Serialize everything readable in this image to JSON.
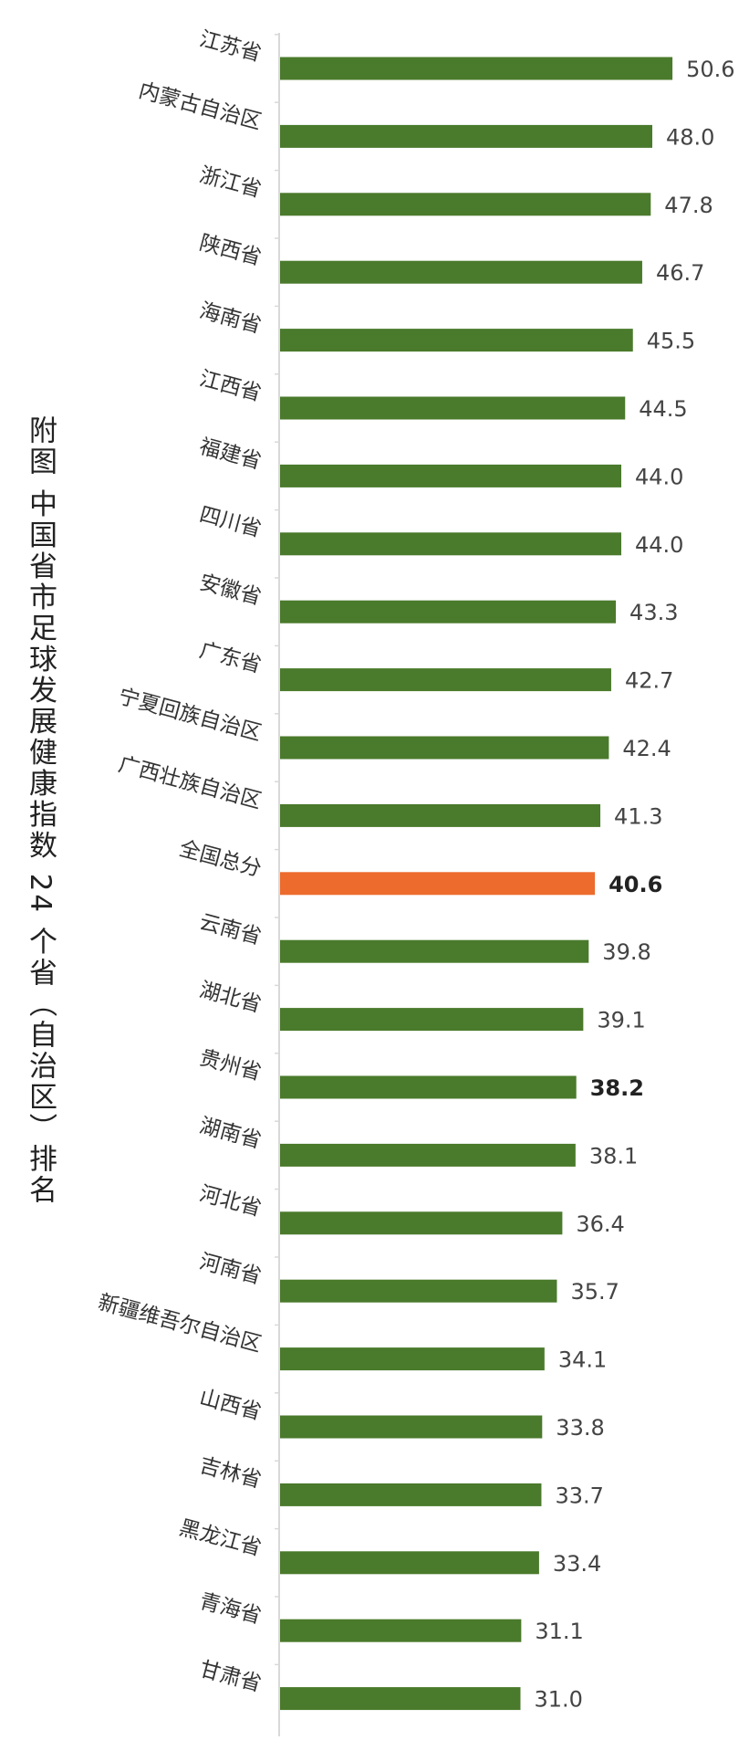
{
  "chart_data": {
    "type": "bar",
    "orientation": "horizontal",
    "title": "附图 中国省市足球发展健康指数 24 个省（自治区）排名",
    "xlabel": "",
    "ylabel": "",
    "categories": [
      "江苏省",
      "内蒙古自治区",
      "浙江省",
      "陕西省",
      "海南省",
      "江西省",
      "福建省",
      "四川省",
      "安徽省",
      "广东省",
      "宁夏回族自治区",
      "广西壮族自治区",
      "全国总分",
      "云南省",
      "湖北省",
      "贵州省",
      "湖南省",
      "河北省",
      "河南省",
      "新疆维吾尔自治区",
      "山西省",
      "吉林省",
      "黑龙江省",
      "青海省",
      "甘肃省"
    ],
    "values": [
      50.6,
      48.0,
      47.8,
      46.7,
      45.5,
      44.5,
      44.0,
      44.0,
      43.3,
      42.7,
      42.4,
      41.3,
      40.6,
      39.8,
      39.1,
      38.2,
      38.1,
      36.4,
      35.7,
      34.1,
      33.8,
      33.7,
      33.4,
      31.1,
      31.0
    ],
    "value_labels": [
      "50.6",
      "48.0",
      "47.8",
      "46.7",
      "45.5",
      "44.5",
      "44.0",
      "44.0",
      "43.3",
      "42.7",
      "42.4",
      "41.3",
      "40.6",
      "39.8",
      "39.1",
      "38.2",
      "38.1",
      "36.4",
      "35.7",
      "34.1",
      "33.8",
      "33.7",
      "33.4",
      "31.1",
      "31.0"
    ],
    "bold_labels": [
      "全国总分",
      "贵州省"
    ],
    "highlight_category": "全国总分",
    "xlim": [
      0,
      52
    ],
    "grid": false,
    "legend": "none",
    "colors": {
      "default": "#4a7a2b",
      "highlight": "#ec6b2d",
      "axis": "#d9d9d9",
      "text": "#444444"
    }
  }
}
